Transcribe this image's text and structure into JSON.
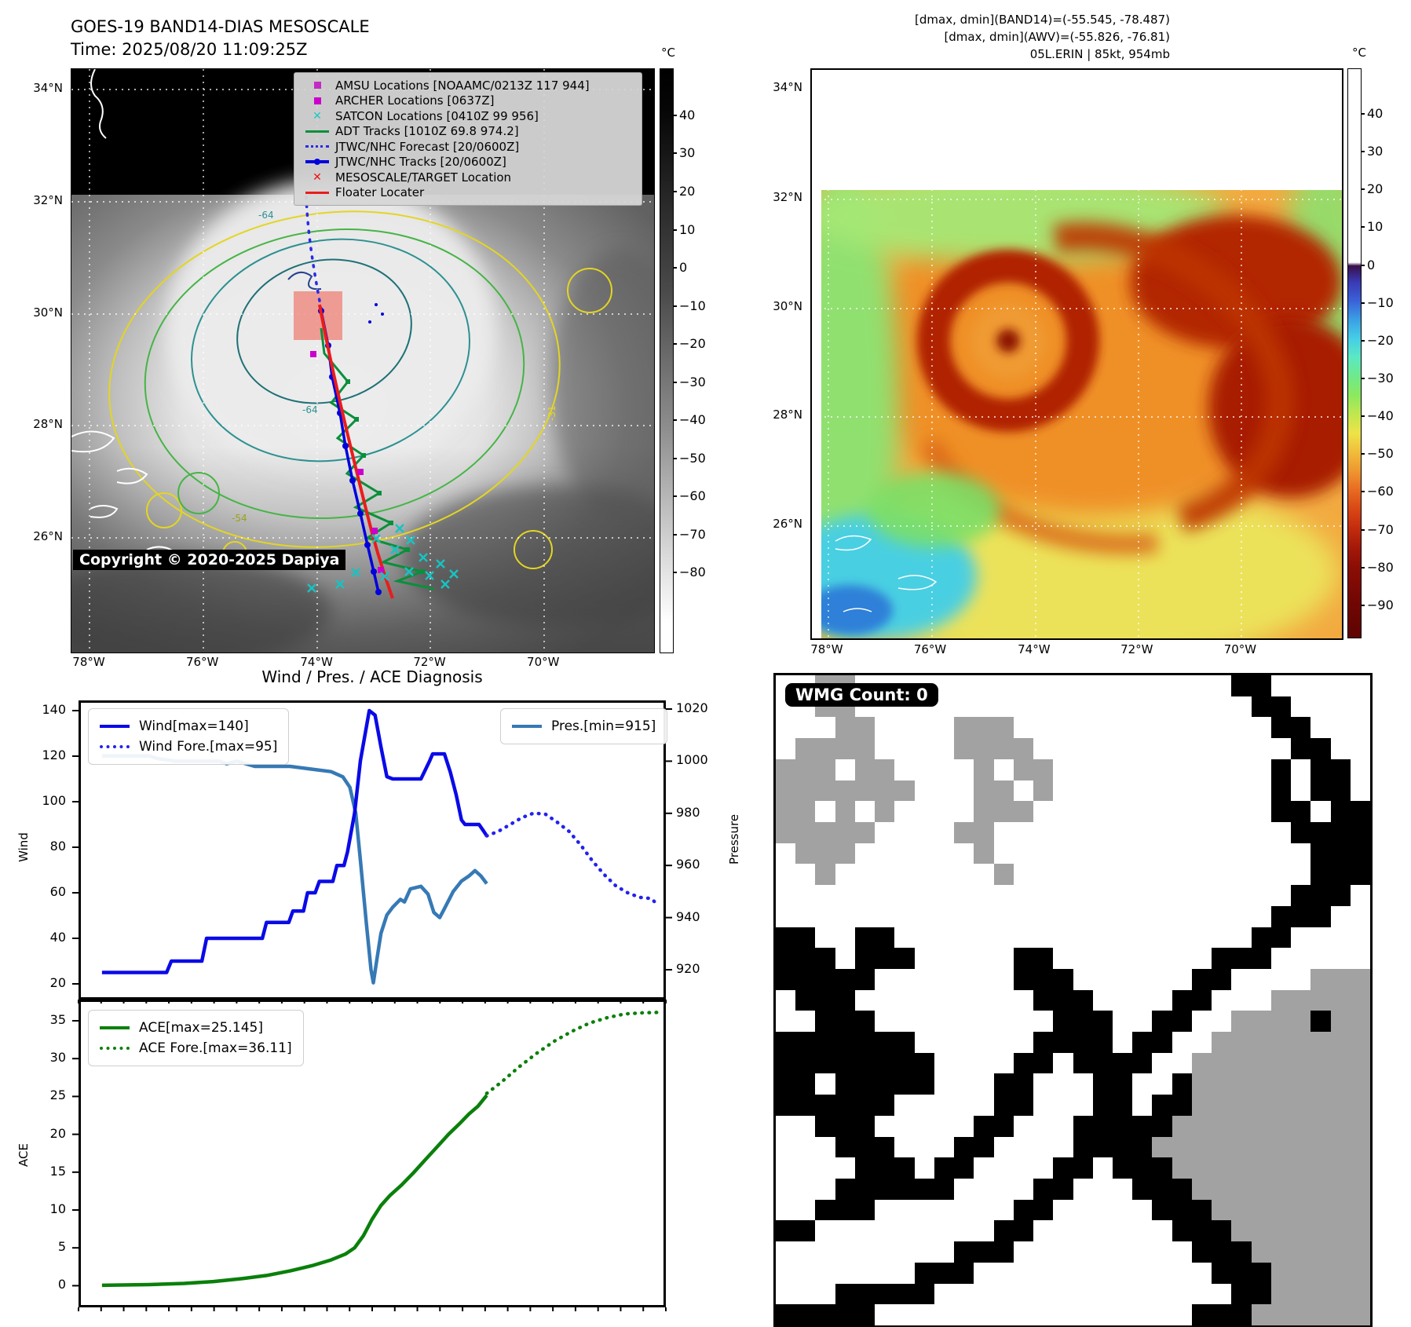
{
  "panels": {
    "goes": {
      "title": "GOES-19 BAND14-DIAS MESOSCALE",
      "time": "Time: 2025/08/20 11:09:25Z",
      "copyright": "Copyright © 2020-2025 Dapiya",
      "legend": [
        {
          "label": "AMSU Locations [NOAAMC/0213Z 117 944]",
          "marker": "square",
          "color": "#c32cc3",
          "icon": "amsu-square"
        },
        {
          "label": "ARCHER Locations [0637Z]",
          "marker": "square",
          "color": "#cc00cc",
          "icon": "archer-square"
        },
        {
          "label": "SATCON Locations [0410Z 99 956]",
          "marker": "x",
          "color": "#1fc6c6",
          "icon": "satcon-x"
        },
        {
          "label": "ADT Tracks [1010Z 69.8 974.2]",
          "marker": "line",
          "color": "#0a8f3c",
          "icon": "adt-line"
        },
        {
          "label": "JTWC/NHC Forecast [20/0600Z]",
          "marker": "dotted",
          "color": "#2a2ae8",
          "icon": "jtwc-forecast-dotted"
        },
        {
          "label": "JTWC/NHC Tracks [20/0600Z]",
          "marker": "line-dot",
          "color": "#0000dd",
          "icon": "jtwc-track-line"
        },
        {
          "label": "MESOSCALE/TARGET Location",
          "marker": "x",
          "color": "#ee1111",
          "icon": "mesoscale-target-x"
        },
        {
          "label": "Floater Locater",
          "marker": "line",
          "color": "#ea1c1c",
          "icon": "floater-line"
        }
      ],
      "lat_ticks": [
        "34°N",
        "32°N",
        "30°N",
        "28°N",
        "26°N"
      ],
      "lon_ticks": [
        "78°W",
        "76°W",
        "74°W",
        "72°W",
        "70°W"
      ],
      "colorbar": {
        "unit": "°C",
        "ticks": [
          40,
          30,
          20,
          10,
          0,
          -10,
          -20,
          -30,
          -40,
          -50,
          -60,
          -70,
          -80
        ]
      }
    },
    "awv": {
      "header_lines": [
        "[dmax, dmin](BAND14)=(-55.545, -78.487)",
        "[dmax, dmin](AWV)=(-55.826, -76.81)",
        "05L.ERIN | 85kt, 954mb"
      ],
      "lat_ticks": [
        "34°N",
        "32°N",
        "30°N",
        "28°N",
        "26°N"
      ],
      "lon_ticks": [
        "78°W",
        "76°W",
        "74°W",
        "72°W",
        "70°W"
      ],
      "colorbar": {
        "unit": "°C",
        "ticks": [
          40,
          30,
          20,
          10,
          0,
          -10,
          -20,
          -30,
          -40,
          -50,
          -60,
          -70,
          -80,
          -90
        ]
      }
    },
    "wmg": {
      "label": "WMG Count: 0",
      "colors": {
        "W": "#ffffff",
        "B": "#000000",
        "G": "#a2a2a2"
      },
      "grid": [
        "WWGGWWWWWWWWWWWWWWWWWWWBBWWWWW",
        "WWGGWWWWWWWWWWWWWWWWWWWWBBWWWW",
        "WWWGGWWWWGGGWWWWWWWWWWWWWBBWWW",
        "WGGGGWWWWGGGGWWWWWWWWWWWWWBBWW",
        "GGGWGGWWWWGWGGWWWWWWWWWWWBWBBW",
        "GGGGGGGWWWGGWGWWWWWWWWWWWBWBBW",
        "GGWGWGWWWWGGGWWWWWWWWWWWWBBWBB",
        "GGGGGWWWWGGWWWWWWWWWWWWWWWBBBB",
        "WGGGWWWWWWGWWWWWWWWWWWWWWWWBBB",
        "WWGWWWWWWWWGWWWWWWWWWWWWWWWBBB",
        "WWWWWWWWWWWWWWWWWWWWWWWWWWBBBW",
        "WWWWWWWWWWWWWWWWWWWWWWWWWBBBWW",
        "BBWWBBWWWWWWWWWWWWWWWWWWBBWWWW",
        "BBBWBBBWWWWWBBWWWWWWWWBBBWWWWW",
        "BBBBBWWWWWWWBBBWWWWWWBBWWWWGGG",
        "WBBBWWWWWWWWWBBBWWWWBBWWWGGGGG",
        "WWBBBWWWWWWWWWBBBWWBBWWGGGGBGG",
        "BBBBBBBWWWWWWBBBBWBBWWGGGGGGGG",
        "BBBBBBBBWWWWBBWBBBBWWGGGGGGGGG",
        "BBWBBBBBWWWBBWWWBBWWBGGGGGGGGG",
        "BBBBBBWWWWWBBWWWBBWBBGGGGGGGGG",
        "WWBBBWWWWWBBWWWBBBBBGGGGGGGGGG",
        "WWWBBBWWWBBWWWWBBBBGGGGGGGGGGG",
        "WWWWBBBWBBWWWWBBWBBBGGGGGGGGGG",
        "WWWBBBBBBWWWWBBWWWBBBGGGGGGGGG",
        "WWBBBWWWWWWWBBWWWWWBBBGGGGGGGG",
        "BBWWWWWWWWWBBWWWWWWWBBBGGGGGGG",
        "WWWWWWWWWBBBWWWWWWWWWBBBGGGGGG",
        "WWWWWWWBBBWWWWWWWWWWWWBBBGGGGG",
        "WWWBBBBBWWWWWWWWWWWWWWWBBGGGGG",
        "BBBBBWWWWWWWWWWWWWWWWBBBGGGGGG"
      ]
    }
  },
  "chart_data": [
    {
      "type": "line",
      "title": "Wind / Pres. / ACE Diagnosis",
      "xlabel": "",
      "x_range": [
        0,
        1
      ],
      "x_tick_labels_visible": false,
      "ylabel_left": "Wind",
      "ylabel_right": "Pressure",
      "ylim_left": [
        15,
        145
      ],
      "yticks_left": [
        20,
        40,
        60,
        80,
        100,
        120,
        140
      ],
      "ylim_right": [
        908,
        1026
      ],
      "yticks_right": [
        920,
        940,
        960,
        980,
        1000,
        1020
      ],
      "grid": false,
      "legend_position": "upper-left and upper-right",
      "series": [
        {
          "name": "Wind[max=140]",
          "style": "solid",
          "color": "#0a0ae8",
          "axis": "left",
          "points": [
            [
              0.04,
              25
            ],
            [
              0.15,
              25
            ],
            [
              0.158,
              30
            ],
            [
              0.21,
              30
            ],
            [
              0.218,
              40
            ],
            [
              0.313,
              40
            ],
            [
              0.32,
              47
            ],
            [
              0.358,
              47
            ],
            [
              0.365,
              52
            ],
            [
              0.383,
              52
            ],
            [
              0.39,
              60
            ],
            [
              0.403,
              60
            ],
            [
              0.41,
              65
            ],
            [
              0.433,
              65
            ],
            [
              0.44,
              72
            ],
            [
              0.452,
              72
            ],
            [
              0.458,
              78
            ],
            [
              0.47,
              95
            ],
            [
              0.48,
              118
            ],
            [
              0.495,
              140
            ],
            [
              0.505,
              138
            ],
            [
              0.515,
              124
            ],
            [
              0.525,
              111
            ],
            [
              0.535,
              110
            ],
            [
              0.583,
              110
            ],
            [
              0.598,
              118
            ],
            [
              0.603,
              121
            ],
            [
              0.623,
              121
            ],
            [
              0.633,
              113
            ],
            [
              0.643,
              103
            ],
            [
              0.652,
              92
            ],
            [
              0.658,
              90
            ],
            [
              0.682,
              90
            ],
            [
              0.69,
              87
            ],
            [
              0.695,
              85
            ]
          ]
        },
        {
          "name": "Wind Fore.[max=95]",
          "style": "dotted",
          "color": "#2222ee",
          "axis": "left",
          "points": [
            [
              0.695,
              85
            ],
            [
              0.715,
              87
            ],
            [
              0.735,
              90
            ],
            [
              0.755,
              93
            ],
            [
              0.775,
              95
            ],
            [
              0.795,
              94.5
            ],
            [
              0.815,
              91
            ],
            [
              0.835,
              87
            ],
            [
              0.855,
              81
            ],
            [
              0.875,
              74
            ],
            [
              0.895,
              68
            ],
            [
              0.915,
              63
            ],
            [
              0.935,
              60
            ],
            [
              0.955,
              58
            ],
            [
              0.975,
              57.5
            ],
            [
              0.985,
              55
            ]
          ]
        },
        {
          "name": "Pres.[min=915]",
          "style": "solid",
          "color": "#3679b5",
          "axis": "right",
          "points": [
            [
              0.04,
              1002
            ],
            [
              0.12,
              1002
            ],
            [
              0.135,
              1001
            ],
            [
              0.165,
              1000
            ],
            [
              0.24,
              1000
            ],
            [
              0.252,
              999
            ],
            [
              0.27,
              1000
            ],
            [
              0.285,
              999
            ],
            [
              0.3,
              998
            ],
            [
              0.36,
              998
            ],
            [
              0.395,
              997
            ],
            [
              0.43,
              996
            ],
            [
              0.45,
              994
            ],
            [
              0.462,
              990
            ],
            [
              0.472,
              980
            ],
            [
              0.48,
              962
            ],
            [
              0.49,
              938
            ],
            [
              0.498,
              920
            ],
            [
              0.502,
              915
            ],
            [
              0.508,
              924
            ],
            [
              0.515,
              934
            ],
            [
              0.525,
              941
            ],
            [
              0.535,
              944
            ],
            [
              0.548,
              947
            ],
            [
              0.555,
              946
            ],
            [
              0.565,
              951
            ],
            [
              0.583,
              952
            ],
            [
              0.595,
              949
            ],
            [
              0.605,
              942
            ],
            [
              0.615,
              940
            ],
            [
              0.622,
              943
            ],
            [
              0.638,
              950
            ],
            [
              0.652,
              954
            ],
            [
              0.665,
              956
            ],
            [
              0.675,
              958
            ],
            [
              0.685,
              956
            ],
            [
              0.695,
              953
            ]
          ]
        }
      ]
    },
    {
      "type": "line",
      "title": "",
      "xlabel": "",
      "x_range": [
        0,
        1
      ],
      "x_tick_labels_visible": false,
      "ylabel_left": "ACE",
      "ylim_left": [
        -2.8,
        37.8
      ],
      "yticks_left": [
        0,
        5,
        10,
        15,
        20,
        25,
        30,
        35
      ],
      "grid": false,
      "legend_position": "upper-left",
      "series": [
        {
          "name": "ACE[max=25.145]",
          "style": "solid",
          "color": "#0a800a",
          "axis": "left",
          "points": [
            [
              0.04,
              0.05
            ],
            [
              0.12,
              0.15
            ],
            [
              0.18,
              0.3
            ],
            [
              0.23,
              0.55
            ],
            [
              0.28,
              0.95
            ],
            [
              0.32,
              1.35
            ],
            [
              0.36,
              1.95
            ],
            [
              0.4,
              2.7
            ],
            [
              0.43,
              3.4
            ],
            [
              0.455,
              4.2
            ],
            [
              0.47,
              5.0
            ],
            [
              0.485,
              6.6
            ],
            [
              0.5,
              8.8
            ],
            [
              0.515,
              10.6
            ],
            [
              0.53,
              11.9
            ],
            [
              0.55,
              13.3
            ],
            [
              0.57,
              14.9
            ],
            [
              0.59,
              16.6
            ],
            [
              0.61,
              18.3
            ],
            [
              0.63,
              20.0
            ],
            [
              0.65,
              21.5
            ],
            [
              0.665,
              22.7
            ],
            [
              0.68,
              23.7
            ],
            [
              0.695,
              25.145
            ]
          ]
        },
        {
          "name": "ACE Fore.[max=36.11]",
          "style": "dotted",
          "color": "#0a800a",
          "axis": "left",
          "points": [
            [
              0.695,
              25.4
            ],
            [
              0.72,
              26.9
            ],
            [
              0.75,
              28.9
            ],
            [
              0.78,
              30.7
            ],
            [
              0.81,
              32.3
            ],
            [
              0.84,
              33.6
            ],
            [
              0.87,
              34.7
            ],
            [
              0.9,
              35.4
            ],
            [
              0.93,
              35.9
            ],
            [
              0.96,
              36.05
            ],
            [
              0.99,
              36.11
            ]
          ]
        }
      ]
    }
  ]
}
